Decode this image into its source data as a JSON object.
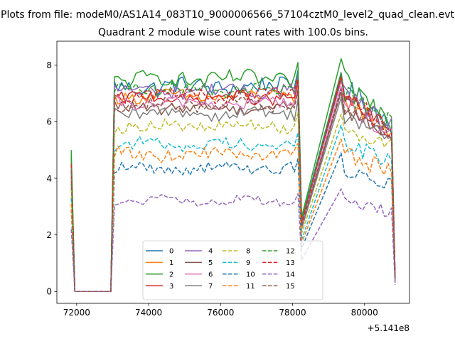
{
  "figure": {
    "suptitle": "Plots from file: modeM0/AS1A14_083T10_9000006566_57104cztM0_level2_quad_clean.evt",
    "title": "Quadrant 2 module wise count rates with 100.0s bins."
  },
  "chart_data": {
    "type": "line",
    "title": "Quadrant 2 module wise count rates with 100.0s bins.",
    "xlabel": "",
    "ylabel": "",
    "x_offset_label": "+5.141e8",
    "x_offset": 514100000,
    "xlim": [
      71450,
      81250
    ],
    "ylim": [
      -0.42,
      8.85
    ],
    "xticks": [
      72000,
      74000,
      76000,
      78000,
      80000
    ],
    "xtick_labels": [
      "72000",
      "74000",
      "76000",
      "78000",
      "80000"
    ],
    "yticks": [
      0,
      2,
      4,
      6,
      8
    ],
    "ytick_labels": [
      "0",
      "2",
      "4",
      "6",
      "8"
    ],
    "grid": false,
    "legend_placement": "lower-center",
    "legend_columns": 4,
    "segments": [
      {
        "start": 71850,
        "end": 78250
      },
      {
        "start": 79350,
        "end": 80850
      }
    ],
    "gap_intervals": [
      [
        72000,
        73000
      ],
      [
        78300,
        79300
      ]
    ],
    "series": [
      {
        "name": "0",
        "color": "#1f77b4",
        "dash": "solid",
        "first": 4.7,
        "peak": 7.9,
        "level": 7.25,
        "amp": 0.3,
        "end_level": 6.3
      },
      {
        "name": "1",
        "color": "#ff7f0e",
        "dash": "solid",
        "first": 4.0,
        "peak": 7.7,
        "level": 6.9,
        "amp": 0.22,
        "end_level": 5.9
      },
      {
        "name": "2",
        "color": "#2ca02c",
        "dash": "solid",
        "first": 5.0,
        "peak": 8.4,
        "level": 7.5,
        "amp": 0.3,
        "end_level": 6.4
      },
      {
        "name": "3",
        "color": "#d62728",
        "dash": "solid",
        "first": 4.6,
        "peak": 7.8,
        "level": 6.85,
        "amp": 0.22,
        "end_level": 6.0
      },
      {
        "name": "4",
        "color": "#9467bd",
        "dash": "solid",
        "first": 4.5,
        "peak": 7.6,
        "level": 7.1,
        "amp": 0.25,
        "end_level": 6.1
      },
      {
        "name": "5",
        "color": "#8c564b",
        "dash": "solid",
        "first": 4.2,
        "peak": 7.2,
        "level": 6.5,
        "amp": 0.2,
        "end_level": 5.7
      },
      {
        "name": "6",
        "color": "#e377c2",
        "dash": "solid",
        "first": 4.4,
        "peak": 7.4,
        "level": 6.65,
        "amp": 0.22,
        "end_level": 5.8
      },
      {
        "name": "7",
        "color": "#7f7f7f",
        "dash": "solid",
        "first": 3.8,
        "peak": 7.0,
        "level": 6.3,
        "amp": 0.22,
        "end_level": 5.6
      },
      {
        "name": "8",
        "color": "#bcbd22",
        "dash": "dashed",
        "first": 3.6,
        "peak": 6.4,
        "level": 5.85,
        "amp": 0.2,
        "end_level": 5.3
      },
      {
        "name": "9",
        "color": "#17becf",
        "dash": "dashed",
        "first": 3.3,
        "peak": 6.0,
        "level": 5.2,
        "amp": 0.22,
        "end_level": 4.8
      },
      {
        "name": "10",
        "color": "#1f77b4",
        "dash": "dashed",
        "first": 2.9,
        "peak": 5.0,
        "level": 4.35,
        "amp": 0.2,
        "end_level": 3.9
      },
      {
        "name": "11",
        "color": "#ff7f0e",
        "dash": "dashed",
        "first": 3.1,
        "peak": 5.5,
        "level": 4.85,
        "amp": 0.22,
        "end_level": 4.4
      },
      {
        "name": "12",
        "color": "#2ca02c",
        "dash": "dashed",
        "first": 4.8,
        "peak": 7.9,
        "level": 7.15,
        "amp": 0.25,
        "end_level": 6.2
      },
      {
        "name": "13",
        "color": "#d62728",
        "dash": "dashed",
        "first": 4.5,
        "peak": 7.7,
        "level": 6.95,
        "amp": 0.25,
        "end_level": 6.0
      },
      {
        "name": "14",
        "color": "#9467bd",
        "dash": "dashed",
        "first": 2.2,
        "peak": 3.7,
        "level": 3.2,
        "amp": 0.15,
        "end_level": 2.9
      },
      {
        "name": "15",
        "color": "#8c564b",
        "dash": "dashed",
        "first": 4.3,
        "peak": 7.3,
        "level": 6.6,
        "amp": 0.22,
        "end_level": 5.8
      }
    ]
  }
}
